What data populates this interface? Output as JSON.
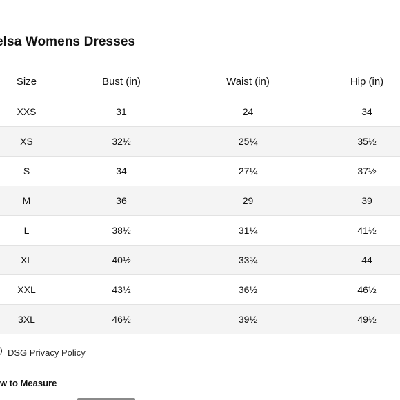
{
  "title": "elsa Womens Dresses",
  "table": {
    "headers": [
      "Size",
      "Bust (in)",
      "Waist (in)",
      "Hip (in)"
    ],
    "rows": [
      [
        "XXS",
        "31",
        "24",
        "34"
      ],
      [
        "XS",
        "32½",
        "25¼",
        "35½"
      ],
      [
        "S",
        "34",
        "27¼",
        "37½"
      ],
      [
        "M",
        "36",
        "29",
        "39"
      ],
      [
        "L",
        "38½",
        "31¼",
        "41½"
      ],
      [
        "XL",
        "40½",
        "33¾",
        "44"
      ],
      [
        "XXL",
        "43½",
        "36½",
        "46½"
      ],
      [
        "3XL",
        "46½",
        "39½",
        "49½"
      ]
    ]
  },
  "privacy": {
    "link_label": "DSG Privacy Policy",
    "icon": "privacy-icon"
  },
  "how_to_measure": "ow to Measure"
}
